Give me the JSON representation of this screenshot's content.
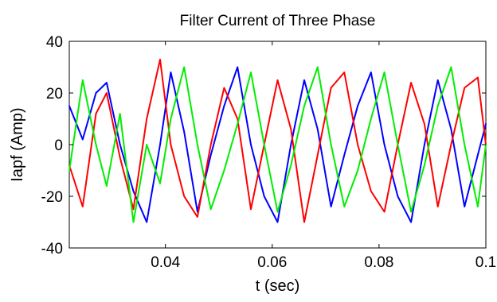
{
  "chart_data": {
    "type": "line",
    "title": "Filter Current of Three Phase",
    "xlabel": "t (sec)",
    "ylabel": "Iapf (Amp)",
    "xlim": [
      0.022,
      0.1
    ],
    "ylim": [
      -40,
      40
    ],
    "grid": false,
    "legend": "none",
    "x_ticks": [
      {
        "value": 0.04,
        "label": "0.04"
      },
      {
        "value": 0.06,
        "label": "0.06"
      },
      {
        "value": 0.08,
        "label": "0.08"
      },
      {
        "value": 0.1,
        "label": "0.1"
      }
    ],
    "y_ticks": [
      {
        "value": 40,
        "label": "40"
      },
      {
        "value": 20,
        "label": "20"
      },
      {
        "value": 0,
        "label": "0"
      },
      {
        "value": -20,
        "label": "-20"
      },
      {
        "value": -40,
        "label": "-40"
      }
    ],
    "series": [
      {
        "color": "#0000ff",
        "x": [
          0.022,
          0.0245,
          0.027,
          0.029,
          0.0315,
          0.034,
          0.0365,
          0.039,
          0.041,
          0.0435,
          0.046,
          0.0485,
          0.051,
          0.0535,
          0.056,
          0.0585,
          0.061,
          0.0635,
          0.066,
          0.0685,
          0.071,
          0.0735,
          0.076,
          0.0785,
          0.081,
          0.0835,
          0.086,
          0.0885,
          0.091,
          0.0935,
          0.096,
          0.0985,
          0.1
        ],
        "y": [
          15,
          2,
          20,
          24,
          0,
          -18,
          -30,
          0,
          28,
          5,
          -26,
          -4,
          15,
          30,
          0,
          -20,
          -30,
          0,
          25,
          6,
          -24,
          -4,
          15,
          28,
          0,
          -20,
          -30,
          0,
          25,
          6,
          -24,
          -4,
          8
        ]
      },
      {
        "color": "#ff0000",
        "x": [
          0.022,
          0.0245,
          0.027,
          0.029,
          0.0315,
          0.034,
          0.0365,
          0.039,
          0.041,
          0.0435,
          0.046,
          0.0485,
          0.051,
          0.0535,
          0.056,
          0.0585,
          0.061,
          0.0635,
          0.066,
          0.0685,
          0.071,
          0.0735,
          0.076,
          0.0785,
          0.081,
          0.0835,
          0.086,
          0.0885,
          0.091,
          0.0935,
          0.096,
          0.0985,
          0.1
        ],
        "y": [
          -8,
          -24,
          12,
          20,
          -5,
          -25,
          10,
          33,
          0,
          -20,
          -28,
          0,
          22,
          10,
          -25,
          0,
          25,
          6,
          -30,
          -4,
          22,
          28,
          0,
          -18,
          -26,
          0,
          24,
          8,
          -24,
          0,
          22,
          26,
          0
        ]
      },
      {
        "color": "#00ee00",
        "x": [
          0.022,
          0.0245,
          0.027,
          0.029,
          0.0315,
          0.034,
          0.0365,
          0.039,
          0.041,
          0.0435,
          0.046,
          0.0485,
          0.051,
          0.0535,
          0.056,
          0.0585,
          0.061,
          0.0635,
          0.066,
          0.0685,
          0.071,
          0.0735,
          0.076,
          0.0785,
          0.081,
          0.0835,
          0.086,
          0.0885,
          0.091,
          0.0935,
          0.096,
          0.0985,
          0.1
        ],
        "y": [
          -10,
          25,
          0,
          -16,
          12,
          -30,
          0,
          -15,
          10,
          30,
          0,
          -25,
          -10,
          8,
          28,
          0,
          -26,
          -8,
          15,
          30,
          0,
          -24,
          -10,
          10,
          28,
          0,
          -26,
          -8,
          15,
          30,
          0,
          -24,
          0
        ]
      }
    ]
  }
}
